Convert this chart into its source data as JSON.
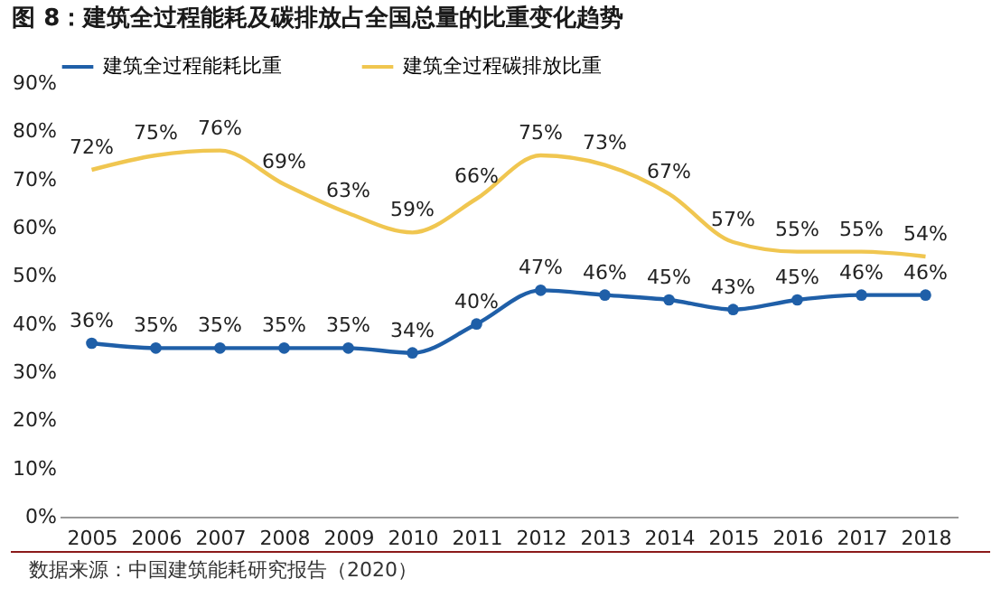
{
  "chart_data": {
    "type": "line",
    "title": "图 8：建筑全过程能耗及碳排放占全国总量的比重变化趋势",
    "categories": [
      "2005",
      "2006",
      "2007",
      "2008",
      "2009",
      "2010",
      "2011",
      "2012",
      "2013",
      "2014",
      "2015",
      "2016",
      "2017",
      "2018"
    ],
    "series": [
      {
        "name": "建筑全过程能耗比重",
        "color": "#1f5fa8",
        "marker": "circle",
        "values": [
          36,
          35,
          35,
          35,
          35,
          34,
          40,
          47,
          46,
          45,
          43,
          45,
          46,
          46
        ],
        "value_labels": [
          "36%",
          "35%",
          "35%",
          "35%",
          "35%",
          "34%",
          "40%",
          "47%",
          "46%",
          "45%",
          "43%",
          "45%",
          "46%",
          "46%"
        ]
      },
      {
        "name": "建筑全过程碳排放比重",
        "color": "#f0c650",
        "marker": "none",
        "values": [
          72,
          75,
          76,
          69,
          63,
          59,
          66,
          75,
          73,
          67,
          57,
          55,
          55,
          54
        ],
        "value_labels": [
          "72%",
          "75%",
          "76%",
          "69%",
          "63%",
          "59%",
          "66%",
          "75%",
          "73%",
          "67%",
          "57%",
          "55%",
          "55%",
          "54%"
        ]
      }
    ],
    "ylim": [
      0,
      90
    ],
    "yticks": [
      {
        "value": 0,
        "label": "0%"
      },
      {
        "value": 10,
        "label": "10%"
      },
      {
        "value": 20,
        "label": "20%"
      },
      {
        "value": 30,
        "label": "30%"
      },
      {
        "value": 40,
        "label": "40%"
      },
      {
        "value": 50,
        "label": "50%"
      },
      {
        "value": 60,
        "label": "60%"
      },
      {
        "value": 70,
        "label": "70%"
      },
      {
        "value": 80,
        "label": "80%"
      },
      {
        "value": 90,
        "label": "90%"
      }
    ],
    "legend": "top",
    "line_style": "solid",
    "annotations": [
      "数据来源：中国建筑能耗研究报告（2020）"
    ]
  }
}
